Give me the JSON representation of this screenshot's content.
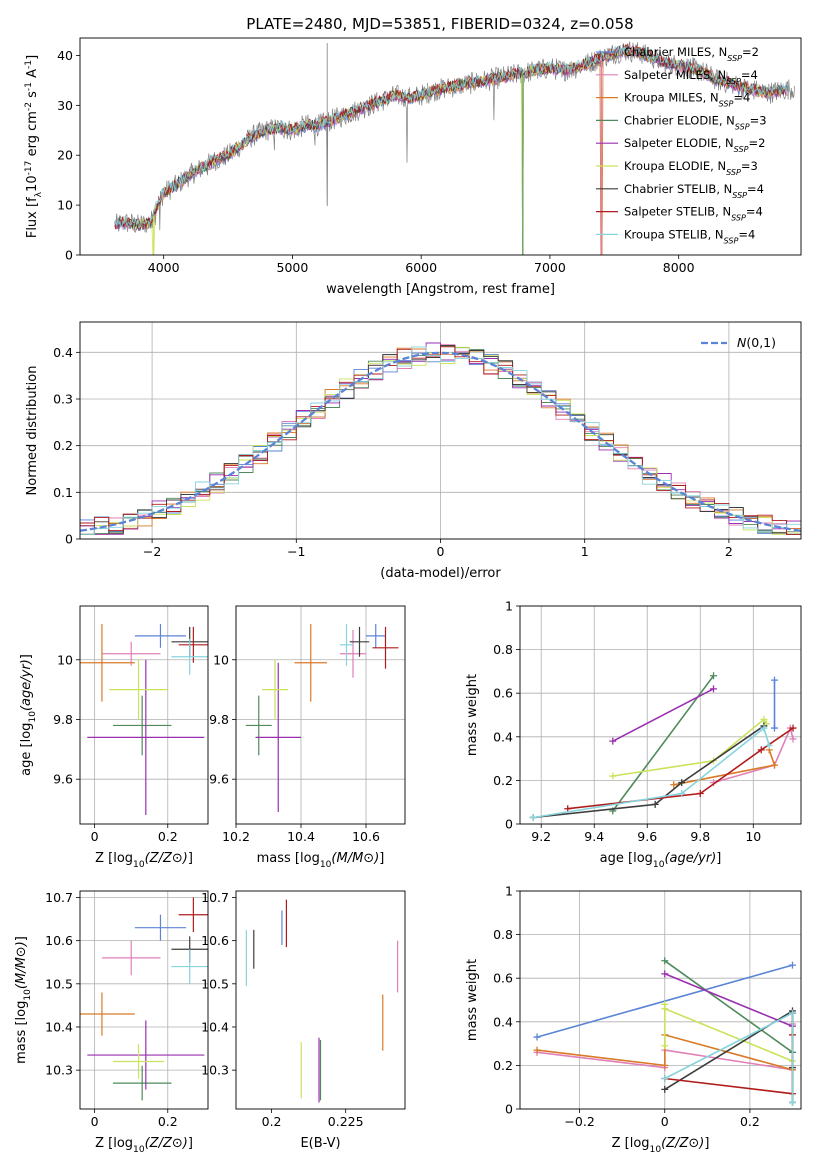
{
  "figure": {
    "title": "PLATE=2480, MJD=53851, FIBERID=0324, z=0.058"
  },
  "series_styles": [
    {
      "name": "Chabrier MILES",
      "nssp": "2",
      "color": "#5b84d6"
    },
    {
      "name": "Salpeter MILES",
      "nssp": "4",
      "color": "#e07fb8"
    },
    {
      "name": "Kroupa MILES",
      "nssp": "4",
      "color": "#d97a27"
    },
    {
      "name": "Chabrier ELODIE",
      "nssp": "3",
      "color": "#4f8a5c"
    },
    {
      "name": "Salpeter ELODIE",
      "nssp": "2",
      "color": "#9a2fb0"
    },
    {
      "name": "Kroupa ELODIE",
      "nssp": "3",
      "color": "#c9e35a"
    },
    {
      "name": "Chabrier STELIB",
      "nssp": "4",
      "color": "#3d3d3d"
    },
    {
      "name": "Salpeter STELIB",
      "nssp": "4",
      "color": "#b01c1c"
    },
    {
      "name": "Kroupa STELIB",
      "nssp": "4",
      "color": "#86d4de"
    }
  ],
  "chart_data": [
    {
      "id": "spectrum",
      "type": "line",
      "xlabel": "wavelength [Angstrom, rest frame]",
      "ylabel": "Flux [f_λ10^-17 erg cm^-2 s^-1 A^-1]",
      "xlim": [
        3350,
        8950
      ],
      "ylim": [
        0,
        43.5
      ],
      "xticks": [
        4000,
        5000,
        6000,
        7000,
        8000
      ],
      "yticks": [
        0,
        10,
        20,
        30,
        40
      ],
      "grid": false,
      "legend": "top-right",
      "data_color": "#808080",
      "continuum": [
        [
          3620,
          6
        ],
        [
          3700,
          6.5
        ],
        [
          3800,
          6
        ],
        [
          3900,
          6.5
        ],
        [
          3950,
          10
        ],
        [
          4000,
          12.5
        ],
        [
          4100,
          14
        ],
        [
          4200,
          16
        ],
        [
          4300,
          17.5
        ],
        [
          4400,
          19
        ],
        [
          4500,
          20
        ],
        [
          4600,
          22
        ],
        [
          4700,
          24
        ],
        [
          4800,
          25
        ],
        [
          4900,
          25.5
        ],
        [
          5000,
          25
        ],
        [
          5100,
          26
        ],
        [
          5200,
          26
        ],
        [
          5300,
          27
        ],
        [
          5400,
          28
        ],
        [
          5500,
          29
        ],
        [
          5600,
          30
        ],
        [
          5700,
          31
        ],
        [
          5800,
          32
        ],
        [
          5900,
          31.5
        ],
        [
          6000,
          32
        ],
        [
          6100,
          33
        ],
        [
          6200,
          33.5
        ],
        [
          6300,
          34
        ],
        [
          6400,
          34.5
        ],
        [
          6500,
          35
        ],
        [
          6600,
          35.5
        ],
        [
          6700,
          36
        ],
        [
          6800,
          36.5
        ],
        [
          6900,
          37
        ],
        [
          7000,
          37.5
        ],
        [
          7100,
          37
        ],
        [
          7200,
          37.5
        ],
        [
          7300,
          38.5
        ],
        [
          7400,
          39.5
        ],
        [
          7500,
          40.5
        ],
        [
          7600,
          41
        ],
        [
          7700,
          40.5
        ],
        [
          7800,
          39.5
        ],
        [
          7900,
          38.5
        ],
        [
          8000,
          38
        ],
        [
          8100,
          37.5
        ],
        [
          8200,
          36.5
        ],
        [
          8300,
          35
        ],
        [
          8400,
          34.5
        ],
        [
          8500,
          33.5
        ],
        [
          8600,
          33
        ],
        [
          8700,
          32.5
        ],
        [
          8800,
          33
        ],
        [
          8900,
          33.5
        ]
      ],
      "model_x_range": [
        3620,
        8850
      ],
      "model_cutoffs": [
        {
          "series": "Kroupa ELODIE",
          "x": 3920
        },
        {
          "series": "Kroupa ELODIE",
          "x": 6790
        },
        {
          "series": "Chabrier ELODIE",
          "x": 6790
        },
        {
          "series": "Kroupa MILES",
          "x": 7400
        },
        {
          "series": "Salpeter MILES",
          "x": 7400
        }
      ]
    },
    {
      "id": "residual-histogram",
      "type": "histogram",
      "xlabel": "(data-model)/error",
      "ylabel": "Normed distribution",
      "xlim": [
        -2.5,
        2.5
      ],
      "ylim": [
        0,
        0.465
      ],
      "xticks": [
        -2,
        -1,
        0,
        1,
        2
      ],
      "yticks": [
        0,
        0.1,
        0.2,
        0.3,
        0.4
      ],
      "grid": true,
      "legend": "top-right",
      "bin_width": 0.1,
      "bin_start": -2.5,
      "reference_curve": {
        "label": "N(0,1)",
        "mean": 0,
        "sigma": 1,
        "color": "#5b84d6"
      }
    },
    {
      "id": "age-vs-metallicity",
      "type": "scatter",
      "xlabel": "Z [log10(Z/Z⊙)]",
      "ylabel": "age [log10(age/yr)]",
      "xlim": [
        -0.04,
        0.31
      ],
      "ylim": [
        9.45,
        10.18
      ],
      "xticks": [
        0.0,
        0.2
      ],
      "yticks": [
        9.6,
        9.8,
        10.0
      ],
      "grid": true,
      "points": [
        {
          "series": "Chabrier MILES",
          "x": 0.18,
          "y": 10.08,
          "xerr": 0.07,
          "yerr": 0.04
        },
        {
          "series": "Salpeter MILES",
          "x": 0.1,
          "y": 10.02,
          "xerr": 0.08,
          "yerr": 0.04
        },
        {
          "series": "Kroupa MILES",
          "x": 0.02,
          "y": 9.99,
          "xerr": 0.09,
          "yerr": 0.13
        },
        {
          "series": "Chabrier ELODIE",
          "x": 0.13,
          "y": 9.78,
          "xerr": 0.08,
          "yerr": 0.1
        },
        {
          "series": "Salpeter ELODIE",
          "x": 0.14,
          "y": 9.74,
          "xerr": 0.16,
          "yerr": 0.26
        },
        {
          "series": "Kroupa ELODIE",
          "x": 0.12,
          "y": 9.9,
          "xerr": 0.08,
          "yerr": 0.1
        },
        {
          "series": "Chabrier STELIB",
          "x": 0.26,
          "y": 10.06,
          "xerr": 0.05,
          "yerr": 0.05
        },
        {
          "series": "Salpeter STELIB",
          "x": 0.27,
          "y": 10.05,
          "xerr": 0.04,
          "yerr": 0.06
        },
        {
          "series": "Kroupa STELIB",
          "x": 0.26,
          "y": 10.01,
          "xerr": 0.05,
          "yerr": 0.06
        }
      ]
    },
    {
      "id": "age-vs-mass",
      "type": "scatter",
      "xlabel": "mass [log10(M/M⊙)]",
      "ylabel": "",
      "xlim": [
        10.2,
        10.72
      ],
      "ylim": [
        9.45,
        10.18
      ],
      "xticks": [
        10.2,
        10.4,
        10.6
      ],
      "yticks": [
        9.6,
        9.8,
        10.0
      ],
      "grid": true,
      "points": [
        {
          "series": "Chabrier MILES",
          "x": 10.63,
          "y": 10.08,
          "xerr": 0.03,
          "yerr": 0.04
        },
        {
          "series": "Salpeter MILES",
          "x": 10.56,
          "y": 10.02,
          "xerr": 0.04,
          "yerr": 0.08
        },
        {
          "series": "Kroupa MILES",
          "x": 10.43,
          "y": 9.99,
          "xerr": 0.05,
          "yerr": 0.13
        },
        {
          "series": "Chabrier ELODIE",
          "x": 10.27,
          "y": 9.78,
          "xerr": 0.04,
          "yerr": 0.1
        },
        {
          "series": "Salpeter ELODIE",
          "x": 10.33,
          "y": 9.74,
          "xerr": 0.07,
          "yerr": 0.25
        },
        {
          "series": "Kroupa ELODIE",
          "x": 10.32,
          "y": 9.9,
          "xerr": 0.04,
          "yerr": 0.1
        },
        {
          "series": "Chabrier STELIB",
          "x": 10.58,
          "y": 10.06,
          "xerr": 0.03,
          "yerr": 0.05
        },
        {
          "series": "Salpeter STELIB",
          "x": 10.66,
          "y": 10.04,
          "xerr": 0.04,
          "yerr": 0.07
        },
        {
          "series": "Kroupa STELIB",
          "x": 10.54,
          "y": 10.05,
          "xerr": 0.02,
          "yerr": 0.07
        }
      ]
    },
    {
      "id": "mass-weight-vs-age",
      "type": "line",
      "xlabel": "age [log10(age/yr)]",
      "ylabel": "mass weight",
      "xlim": [
        9.12,
        10.18
      ],
      "ylim": [
        0,
        1.0
      ],
      "xticks": [
        9.2,
        9.4,
        9.6,
        9.8,
        10.0
      ],
      "yticks": [
        0.0,
        0.2,
        0.4,
        0.6,
        0.8,
        1.0
      ],
      "grid": true,
      "series": [
        {
          "name": "Chabrier MILES",
          "x": [
            10.08,
            10.08
          ],
          "y": [
            0.44,
            0.66
          ]
        },
        {
          "name": "Salpeter MILES",
          "x": [
            9.85,
            10.08,
            10.14,
            10.15
          ],
          "y": [
            0.19,
            0.27,
            0.44,
            0.39
          ]
        },
        {
          "name": "Kroupa MILES",
          "x": [
            9.7,
            10.08,
            10.06
          ],
          "y": [
            0.18,
            0.27,
            0.34
          ]
        },
        {
          "name": "Chabrier ELODIE",
          "x": [
            9.47,
            9.85
          ],
          "y": [
            0.06,
            0.68
          ]
        },
        {
          "name": "Salpeter ELODIE",
          "x": [
            9.47,
            9.85
          ],
          "y": [
            0.38,
            0.62
          ]
        },
        {
          "name": "Kroupa ELODIE",
          "x": [
            9.47,
            9.85,
            10.04,
            10.05
          ],
          "y": [
            0.22,
            0.29,
            0.48,
            0.46
          ]
        },
        {
          "name": "Chabrier STELIB",
          "x": [
            9.17,
            9.63,
            9.73,
            10.04
          ],
          "y": [
            0.03,
            0.09,
            0.19,
            0.45
          ]
        },
        {
          "name": "Salpeter STELIB",
          "x": [
            9.3,
            9.8,
            10.03,
            10.15
          ],
          "y": [
            0.07,
            0.14,
            0.34,
            0.44
          ]
        },
        {
          "name": "Kroupa STELIB",
          "x": [
            9.17,
            9.73,
            10.04,
            10.06
          ],
          "y": [
            0.03,
            0.14,
            0.44,
            0.36
          ]
        }
      ]
    },
    {
      "id": "mass-vs-metallicity",
      "type": "scatter",
      "xlabel": "Z [log10(Z/Z⊙)]",
      "ylabel": "mass [log10(M/M⊙)]",
      "xlim": [
        -0.04,
        0.31
      ],
      "ylim": [
        10.21,
        10.715
      ],
      "xticks": [
        0.0,
        0.2
      ],
      "yticks": [
        10.3,
        10.4,
        10.5,
        10.6,
        10.7
      ],
      "grid": true,
      "points": [
        {
          "series": "Chabrier MILES",
          "x": 0.18,
          "y": 10.63,
          "xerr": 0.07,
          "yerr": 0.03
        },
        {
          "series": "Salpeter MILES",
          "x": 0.1,
          "y": 10.56,
          "xerr": 0.08,
          "yerr": 0.04
        },
        {
          "series": "Kroupa MILES",
          "x": 0.02,
          "y": 10.43,
          "xerr": 0.09,
          "yerr": 0.05
        },
        {
          "series": "Chabrier ELODIE",
          "x": 0.13,
          "y": 10.27,
          "xerr": 0.08,
          "yerr": 0.04
        },
        {
          "series": "Salpeter ELODIE",
          "x": 0.14,
          "y": 10.335,
          "xerr": 0.16,
          "yerr": 0.08
        },
        {
          "series": "Kroupa ELODIE",
          "x": 0.12,
          "y": 10.32,
          "xerr": 0.07,
          "yerr": 0.04
        },
        {
          "series": "Chabrier STELIB",
          "x": 0.26,
          "y": 10.58,
          "xerr": 0.05,
          "yerr": 0.03
        },
        {
          "series": "Salpeter STELIB",
          "x": 0.27,
          "y": 10.66,
          "xerr": 0.04,
          "yerr": 0.04
        },
        {
          "series": "Kroupa STELIB",
          "x": 0.26,
          "y": 10.54,
          "xerr": 0.05,
          "yerr": 0.04
        }
      ]
    },
    {
      "id": "mass-vs-ebv",
      "type": "scatter",
      "xlabel": "E(B-V)",
      "ylabel": "",
      "xlim": [
        0.188,
        0.245
      ],
      "ylim": [
        10.21,
        10.715
      ],
      "xticks": [
        0.2,
        0.225
      ],
      "yticks": [
        10.3,
        10.4,
        10.5,
        10.6,
        10.7
      ],
      "grid": false,
      "points": [
        {
          "series": "Chabrier MILES",
          "x": 0.2035,
          "y": 10.63,
          "xerr": 0,
          "yerr": 0.04
        },
        {
          "series": "Salpeter MILES",
          "x": 0.2425,
          "y": 10.54,
          "xerr": 0,
          "yerr": 0.06
        },
        {
          "series": "Kroupa MILES",
          "x": 0.2375,
          "y": 10.41,
          "xerr": 0,
          "yerr": 0.065
        },
        {
          "series": "Chabrier ELODIE",
          "x": 0.2165,
          "y": 10.3,
          "xerr": 0,
          "yerr": 0.07
        },
        {
          "series": "Salpeter ELODIE",
          "x": 0.216,
          "y": 10.3,
          "xerr": 0,
          "yerr": 0.075
        },
        {
          "series": "Kroupa ELODIE",
          "x": 0.21,
          "y": 10.3,
          "xerr": 0,
          "yerr": 0.065
        },
        {
          "series": "Chabrier STELIB",
          "x": 0.194,
          "y": 10.58,
          "xerr": 0,
          "yerr": 0.045
        },
        {
          "series": "Salpeter STELIB",
          "x": 0.205,
          "y": 10.64,
          "xerr": 0,
          "yerr": 0.055
        },
        {
          "series": "Kroupa STELIB",
          "x": 0.1915,
          "y": 10.56,
          "xerr": 0,
          "yerr": 0.065
        }
      ]
    },
    {
      "id": "mass-weight-vs-metallicity",
      "type": "line",
      "xlabel": "Z [log10(Z/Z⊙)]",
      "ylabel": "mass weight",
      "xlim": [
        -0.34,
        0.32
      ],
      "ylim": [
        0,
        1.0
      ],
      "xticks": [
        -0.2,
        0.0,
        0.2
      ],
      "yticks": [
        0.0,
        0.2,
        0.4,
        0.6,
        0.8,
        1.0
      ],
      "grid": true,
      "series": [
        {
          "name": "Chabrier MILES",
          "x": [
            -0.3,
            0.3
          ],
          "y": [
            0.33,
            0.66
          ]
        },
        {
          "name": "Salpeter MILES",
          "x": [
            -0.3,
            0.0,
            0.0,
            0.3,
            0.3,
            0.3
          ],
          "y": [
            0.26,
            0.19,
            0.27,
            0.18,
            0.44,
            0.39
          ]
        },
        {
          "name": "Kroupa MILES",
          "x": [
            -0.3,
            0.0,
            0.0,
            0.3
          ],
          "y": [
            0.27,
            0.2,
            0.34,
            0.18
          ]
        },
        {
          "name": "Chabrier ELODIE",
          "x": [
            0.0,
            0.3
          ],
          "y": [
            0.68,
            0.26
          ]
        },
        {
          "name": "Salpeter ELODIE",
          "x": [
            0.0,
            0.3
          ],
          "y": [
            0.62,
            0.38
          ]
        },
        {
          "name": "Kroupa ELODIE",
          "x": [
            0.0,
            0.0,
            0.0,
            0.3,
            0.3
          ],
          "y": [
            0.29,
            0.48,
            0.46,
            0.22,
            0.34
          ]
        },
        {
          "name": "Chabrier STELIB",
          "x": [
            0.0,
            0.3,
            0.3,
            0.3
          ],
          "y": [
            0.09,
            0.45,
            0.03,
            0.19
          ]
        },
        {
          "name": "Salpeter STELIB",
          "x": [
            0.0,
            0.3,
            0.3,
            0.3
          ],
          "y": [
            0.14,
            0.07,
            0.34,
            0.44
          ]
        },
        {
          "name": "Kroupa STELIB",
          "x": [
            0.0,
            0.3,
            0.3
          ],
          "y": [
            0.14,
            0.44,
            0.03
          ]
        }
      ]
    }
  ]
}
